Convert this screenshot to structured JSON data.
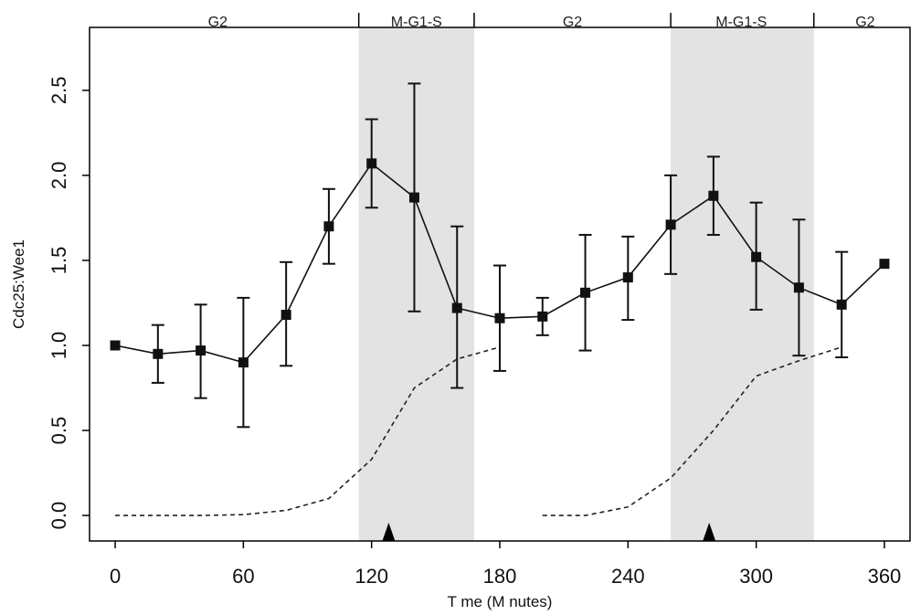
{
  "chart_data": {
    "type": "line",
    "xlabel": "T me (M nutes)",
    "ylabel": "Cdc25:Wee1",
    "xlim": [
      -12,
      372
    ],
    "ylim": [
      -0.15,
      2.87
    ],
    "x_ticks": [
      0,
      60,
      120,
      180,
      240,
      300,
      360
    ],
    "x_tick_labels": [
      "0",
      "60",
      "120",
      "180",
      "240",
      "300",
      "360"
    ],
    "y_ticks": [
      0.0,
      0.5,
      1.0,
      1.5,
      2.0,
      2.5
    ],
    "y_tick_labels": [
      "0.0",
      "0.5",
      "1.0",
      "1.5",
      "2.0",
      "2.5"
    ],
    "shaded_regions": [
      [
        114,
        168
      ],
      [
        260,
        327
      ]
    ],
    "shade_color": "#e3e3e3",
    "phase_labels": [
      {
        "label": "G2",
        "x": 48
      },
      {
        "label": "M-G1-S",
        "x": 141
      },
      {
        "label": "G2",
        "x": 214
      },
      {
        "label": "M-G1-S",
        "x": 293
      },
      {
        "label": "G2",
        "x": 351
      }
    ],
    "phase_boundaries": [
      114,
      168,
      260,
      327
    ],
    "arrows_x": [
      128,
      278
    ],
    "series": [
      {
        "style": "solid-with-error-bars",
        "x": [
          0,
          20,
          40,
          60,
          80,
          100,
          120,
          140,
          160,
          180,
          200,
          220,
          240,
          260,
          280,
          300,
          320,
          340,
          360
        ],
        "y": [
          1.0,
          0.95,
          0.97,
          0.9,
          1.18,
          1.7,
          2.07,
          1.87,
          1.22,
          1.16,
          1.17,
          1.31,
          1.4,
          1.71,
          1.88,
          1.52,
          1.34,
          1.24,
          1.48
        ],
        "err_low": [
          1.0,
          0.78,
          0.69,
          0.52,
          0.88,
          1.48,
          1.81,
          1.2,
          0.75,
          0.85,
          1.06,
          0.97,
          1.15,
          1.42,
          1.65,
          1.21,
          0.94,
          0.93,
          1.48
        ],
        "err_high": [
          1.0,
          1.12,
          1.24,
          1.28,
          1.49,
          1.92,
          2.33,
          2.54,
          1.7,
          1.47,
          1.28,
          1.65,
          1.64,
          2.0,
          2.11,
          1.84,
          1.74,
          1.55,
          1.48
        ]
      },
      {
        "style": "dashed",
        "segments": [
          {
            "x": [
              0,
              20,
              40,
              60,
              80,
              100,
              120,
              140,
              160,
              180
            ],
            "y": [
              0.0,
              0.0,
              0.0,
              0.005,
              0.03,
              0.1,
              0.33,
              0.75,
              0.92,
              0.99
            ]
          },
          {
            "x": [
              200,
              220,
              240,
              260,
              280,
              300,
              320,
              340
            ],
            "y": [
              0.0,
              0.0,
              0.05,
              0.22,
              0.5,
              0.82,
              0.91,
              0.99
            ]
          }
        ]
      }
    ]
  }
}
